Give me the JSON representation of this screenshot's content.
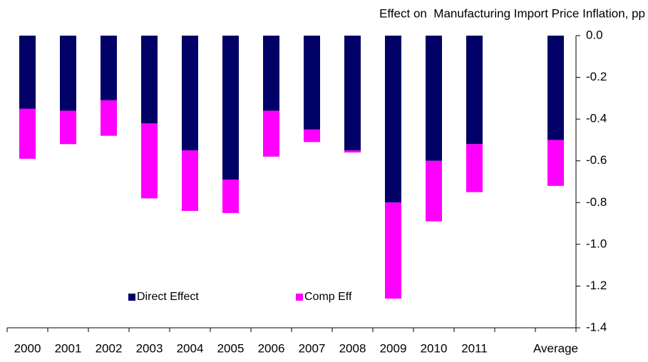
{
  "chart_data": {
    "type": "stacked_bar",
    "title": "Effect on  Manufacturing Import Price Inflation, pp",
    "categories": [
      "2000",
      "2001",
      "2002",
      "2003",
      "2004",
      "2005",
      "2006",
      "2007",
      "2008",
      "2009",
      "2010",
      "2011",
      null,
      "Average"
    ],
    "series": [
      {
        "name": "Direct Effect",
        "color": "#000066",
        "values": [
          -0.35,
          -0.36,
          -0.31,
          -0.42,
          -0.55,
          -0.69,
          -0.36,
          -0.45,
          -0.55,
          -0.8,
          -0.6,
          -0.52,
          null,
          -0.5
        ]
      },
      {
        "name": "Comp Eff",
        "color": "#ff00ff",
        "values": [
          -0.24,
          -0.16,
          -0.17,
          -0.36,
          -0.29,
          -0.16,
          -0.22,
          -0.06,
          -0.01,
          -0.46,
          -0.29,
          -0.23,
          null,
          -0.22
        ]
      }
    ],
    "ylim": [
      -1.4,
      0
    ],
    "yticks": [
      {
        "value": 0,
        "label": "0.0"
      },
      -0.2,
      -0.4,
      -0.6,
      -0.8,
      {
        "value": -1,
        "label": "-1.0"
      },
      -1.2,
      -1.4
    ],
    "y_axis_side": "right",
    "legend": "lower center"
  }
}
